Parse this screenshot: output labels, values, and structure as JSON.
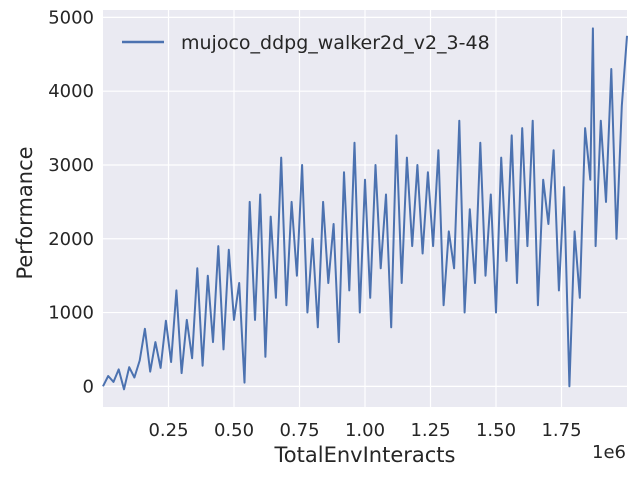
{
  "chart_data": {
    "type": "line",
    "xlabel": "TotalEnvInteracts",
    "ylabel": "Performance",
    "x_offset_label": "1e6",
    "x_ticks": [
      0.25,
      0.5,
      0.75,
      1.0,
      1.25,
      1.5,
      1.75
    ],
    "x_tick_labels": [
      "0.25",
      "0.50",
      "0.75",
      "1.00",
      "1.25",
      "1.50",
      "1.75"
    ],
    "y_ticks": [
      0,
      1000,
      2000,
      3000,
      4000,
      5000
    ],
    "y_tick_labels": [
      "0",
      "1000",
      "2000",
      "3000",
      "4000",
      "5000"
    ],
    "xlim": [
      0.0,
      2.0
    ],
    "ylim": [
      -280,
      5100
    ],
    "grid": true,
    "legend_position": "top-left",
    "series": [
      {
        "name": "mujoco_ddpg_walker2d_v2_3-48",
        "color": "#4c72b0",
        "x": [
          0.0,
          0.02,
          0.04,
          0.06,
          0.08,
          0.1,
          0.12,
          0.14,
          0.16,
          0.18,
          0.2,
          0.22,
          0.24,
          0.26,
          0.28,
          0.3,
          0.32,
          0.34,
          0.36,
          0.38,
          0.4,
          0.42,
          0.44,
          0.46,
          0.48,
          0.5,
          0.52,
          0.54,
          0.56,
          0.58,
          0.6,
          0.62,
          0.64,
          0.66,
          0.68,
          0.7,
          0.72,
          0.74,
          0.76,
          0.78,
          0.8,
          0.82,
          0.84,
          0.86,
          0.88,
          0.9,
          0.92,
          0.94,
          0.96,
          0.98,
          1.0,
          1.02,
          1.04,
          1.06,
          1.08,
          1.1,
          1.12,
          1.14,
          1.16,
          1.18,
          1.2,
          1.22,
          1.24,
          1.26,
          1.28,
          1.3,
          1.32,
          1.34,
          1.36,
          1.38,
          1.4,
          1.42,
          1.44,
          1.46,
          1.48,
          1.5,
          1.52,
          1.54,
          1.56,
          1.58,
          1.6,
          1.62,
          1.64,
          1.66,
          1.68,
          1.7,
          1.72,
          1.74,
          1.76,
          1.78,
          1.8,
          1.82,
          1.84,
          1.86,
          1.87,
          1.88,
          1.9,
          1.92,
          1.94,
          1.96,
          1.98,
          2.0
        ],
        "values": [
          0,
          140,
          60,
          230,
          -40,
          260,
          120,
          350,
          780,
          200,
          600,
          250,
          890,
          330,
          1300,
          180,
          900,
          380,
          1600,
          280,
          1500,
          600,
          1900,
          500,
          1850,
          900,
          1400,
          50,
          2500,
          900,
          2600,
          400,
          2300,
          1200,
          3100,
          1100,
          2500,
          1500,
          3000,
          1000,
          2000,
          800,
          2500,
          1400,
          2200,
          600,
          2900,
          1300,
          3300,
          1000,
          2800,
          1200,
          3000,
          1600,
          2600,
          800,
          3400,
          1400,
          3100,
          1900,
          3000,
          1800,
          2900,
          1900,
          3200,
          1100,
          2100,
          1600,
          3600,
          1000,
          2400,
          1400,
          3300,
          1500,
          2600,
          1000,
          3100,
          1700,
          3400,
          1400,
          3500,
          1900,
          3600,
          1100,
          2800,
          2200,
          3200,
          1300,
          2700,
          0,
          2100,
          1200,
          3500,
          2800,
          4850,
          1900,
          3600,
          2500,
          4300,
          2000,
          3800,
          4750
        ]
      }
    ]
  }
}
